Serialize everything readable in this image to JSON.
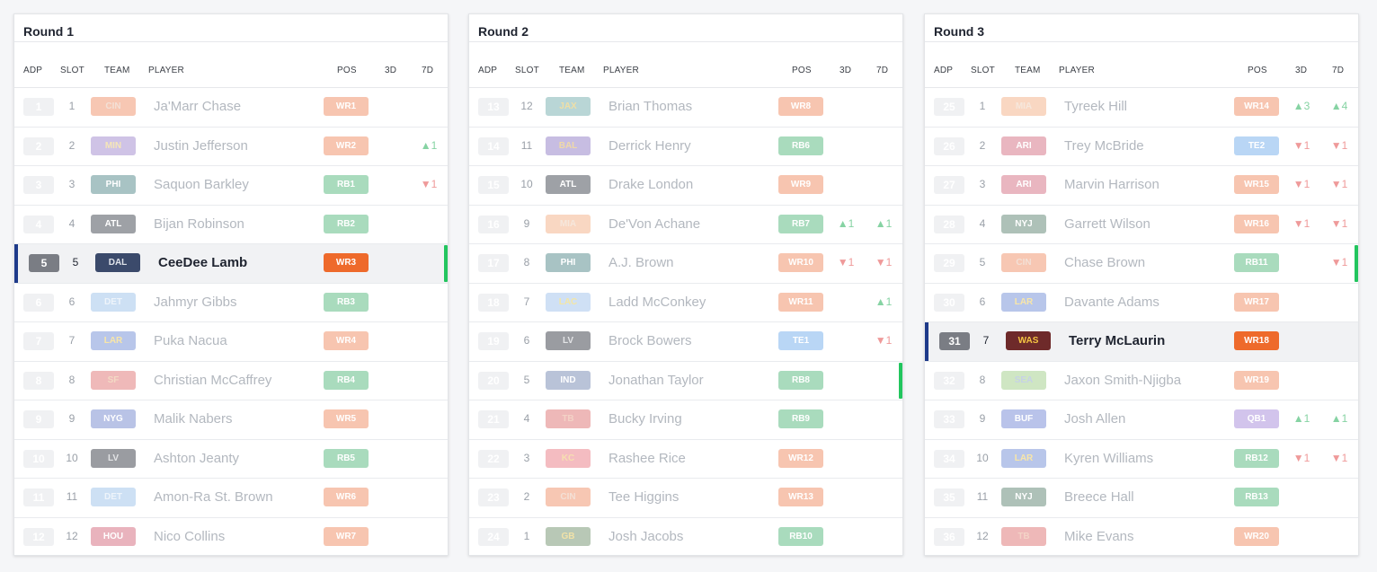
{
  "rounds": [
    {
      "title": "Round 1",
      "headers": {
        "adp": "ADP",
        "slot": "SLOT",
        "team": "TEAM",
        "player": "PLAYER",
        "pos": "POS",
        "d3": "3D",
        "d7": "7D"
      },
      "rows": [
        {
          "adp": "1",
          "slot": "1",
          "team": "CIN",
          "player": "Ja'Marr Chase",
          "pos": "WR1",
          "d3": "",
          "d7": "",
          "team_bg": "#f7c7b3",
          "team_fg": "#f3e0d6",
          "pos_bg": "#f7c5b0"
        },
        {
          "adp": "2",
          "slot": "2",
          "team": "MIN",
          "player": "Justin Jefferson",
          "pos": "WR2",
          "d3": "",
          "d7": "▲1",
          "team_bg": "#cfc3e6",
          "team_fg": "#f5e6b8",
          "pos_bg": "#f7c5b0"
        },
        {
          "adp": "3",
          "slot": "3",
          "team": "PHI",
          "player": "Saquon Barkley",
          "pos": "RB1",
          "d3": "",
          "d7": "▼1",
          "team_bg": "#a8c3c4",
          "team_fg": "#ffffff",
          "pos_bg": "#a9dbbd"
        },
        {
          "adp": "4",
          "slot": "4",
          "team": "ATL",
          "player": "Bijan Robinson",
          "pos": "RB2",
          "d3": "",
          "d7": "",
          "team_bg": "#9ea1a6",
          "team_fg": "#ffffff",
          "pos_bg": "#a9dbbd"
        },
        {
          "adp": "5",
          "slot": "5",
          "team": "DAL",
          "player": "CeeDee Lamb",
          "pos": "WR3",
          "d3": "",
          "d7": "",
          "team_bg": "#3b4a6b",
          "team_fg": "#dfe3ea",
          "pos_bg": "#ee6a2b",
          "mine": true,
          "flag": true
        },
        {
          "adp": "6",
          "slot": "6",
          "team": "DET",
          "player": "Jahmyr Gibbs",
          "pos": "RB3",
          "d3": "",
          "d7": "",
          "team_bg": "#cde0f4",
          "team_fg": "#eef4fb",
          "pos_bg": "#a9dbbd"
        },
        {
          "adp": "7",
          "slot": "7",
          "team": "LAR",
          "player": "Puka Nacua",
          "pos": "WR4",
          "d3": "",
          "d7": "",
          "team_bg": "#b8c6ea",
          "team_fg": "#f8e6a8",
          "pos_bg": "#f7c5b0"
        },
        {
          "adp": "8",
          "slot": "8",
          "team": "SF",
          "player": "Christian McCaffrey",
          "pos": "RB4",
          "d3": "",
          "d7": "",
          "team_bg": "#efb9b9",
          "team_fg": "#f3d9c4",
          "pos_bg": "#a9dbbd"
        },
        {
          "adp": "9",
          "slot": "9",
          "team": "NYG",
          "player": "Malik Nabers",
          "pos": "WR5",
          "d3": "",
          "d7": "",
          "team_bg": "#b9c3e6",
          "team_fg": "#ffffff",
          "pos_bg": "#f7c5b0"
        },
        {
          "adp": "10",
          "slot": "10",
          "team": "LV",
          "player": "Ashton Jeanty",
          "pos": "RB5",
          "d3": "",
          "d7": "",
          "team_bg": "#9a9ca1",
          "team_fg": "#e3e4e6",
          "pos_bg": "#a9dbbd"
        },
        {
          "adp": "11",
          "slot": "11",
          "team": "DET",
          "player": "Amon-Ra St. Brown",
          "pos": "WR6",
          "d3": "",
          "d7": "",
          "team_bg": "#cde0f4",
          "team_fg": "#eef4fb",
          "pos_bg": "#f7c5b0"
        },
        {
          "adp": "12",
          "slot": "12",
          "team": "HOU",
          "player": "Nico Collins",
          "pos": "WR7",
          "d3": "",
          "d7": "",
          "team_bg": "#e9b3bd",
          "team_fg": "#ffffff",
          "pos_bg": "#f7c5b0"
        }
      ]
    },
    {
      "title": "Round 2",
      "headers": {
        "adp": "ADP",
        "slot": "SLOT",
        "team": "TEAM",
        "player": "PLAYER",
        "pos": "POS",
        "d3": "3D",
        "d7": "7D"
      },
      "rows": [
        {
          "adp": "13",
          "slot": "12",
          "team": "JAX",
          "player": "Brian Thomas",
          "pos": "WR8",
          "d3": "",
          "d7": "",
          "team_bg": "#b9d6d6",
          "team_fg": "#efdfa6",
          "pos_bg": "#f7c5b0"
        },
        {
          "adp": "14",
          "slot": "11",
          "team": "BAL",
          "player": "Derrick Henry",
          "pos": "RB6",
          "d3": "",
          "d7": "",
          "team_bg": "#c7bde2",
          "team_fg": "#efd9a8",
          "pos_bg": "#a9dbbd"
        },
        {
          "adp": "15",
          "slot": "10",
          "team": "ATL",
          "player": "Drake London",
          "pos": "WR9",
          "d3": "",
          "d7": "",
          "team_bg": "#9ea1a6",
          "team_fg": "#ffffff",
          "pos_bg": "#f7c5b0"
        },
        {
          "adp": "16",
          "slot": "9",
          "team": "MIA",
          "player": "De'Von Achane",
          "pos": "RB7",
          "d3": "▲1",
          "d7": "▲1",
          "team_bg": "#f9d7c2",
          "team_fg": "#f6e7dc",
          "pos_bg": "#a9dbbd"
        },
        {
          "adp": "17",
          "slot": "8",
          "team": "PHI",
          "player": "A.J. Brown",
          "pos": "WR10",
          "d3": "▼1",
          "d7": "▼1",
          "team_bg": "#a8c3c4",
          "team_fg": "#ffffff",
          "pos_bg": "#f7c5b0"
        },
        {
          "adp": "18",
          "slot": "7",
          "team": "LAC",
          "player": "Ladd McConkey",
          "pos": "WR11",
          "d3": "",
          "d7": "▲1",
          "team_bg": "#cfe0f5",
          "team_fg": "#f3e6a6",
          "pos_bg": "#f7c5b0"
        },
        {
          "adp": "19",
          "slot": "6",
          "team": "LV",
          "player": "Brock Bowers",
          "pos": "TE1",
          "d3": "",
          "d7": "▼1",
          "team_bg": "#9a9ca1",
          "team_fg": "#e3e4e6",
          "pos_bg": "#b9d6f5"
        },
        {
          "adp": "20",
          "slot": "5",
          "team": "IND",
          "player": "Jonathan Taylor",
          "pos": "RB8",
          "d3": "",
          "d7": "",
          "team_bg": "#b9c3d8",
          "team_fg": "#ffffff",
          "pos_bg": "#a9dbbd",
          "flag": true
        },
        {
          "adp": "21",
          "slot": "4",
          "team": "TB",
          "player": "Bucky Irving",
          "pos": "RB9",
          "d3": "",
          "d7": "",
          "team_bg": "#eeb8b8",
          "team_fg": "#f3d2c6",
          "pos_bg": "#a9dbbd"
        },
        {
          "adp": "22",
          "slot": "3",
          "team": "KC",
          "player": "Rashee Rice",
          "pos": "WR12",
          "d3": "",
          "d7": "",
          "team_bg": "#f4bcc1",
          "team_fg": "#f6dfb0",
          "pos_bg": "#f7c5b0"
        },
        {
          "adp": "23",
          "slot": "2",
          "team": "CIN",
          "player": "Tee Higgins",
          "pos": "WR13",
          "d3": "",
          "d7": "",
          "team_bg": "#f7c7b3",
          "team_fg": "#f3e0d6",
          "pos_bg": "#f7c5b0"
        },
        {
          "adp": "24",
          "slot": "1",
          "team": "GB",
          "player": "Josh Jacobs",
          "pos": "RB10",
          "d3": "",
          "d7": "",
          "team_bg": "#b8c8b6",
          "team_fg": "#f1e2a8",
          "pos_bg": "#a9dbbd"
        }
      ]
    },
    {
      "title": "Round 3",
      "headers": {
        "adp": "ADP",
        "slot": "SLOT",
        "team": "TEAM",
        "player": "PLAYER",
        "pos": "POS",
        "d3": "3D",
        "d7": "7D"
      },
      "rows": [
        {
          "adp": "25",
          "slot": "1",
          "team": "MIA",
          "player": "Tyreek Hill",
          "pos": "WR14",
          "d3": "▲3",
          "d7": "▲4",
          "team_bg": "#f9d7c2",
          "team_fg": "#f6e7dc",
          "pos_bg": "#f7c5b0"
        },
        {
          "adp": "26",
          "slot": "2",
          "team": "ARI",
          "player": "Trey McBride",
          "pos": "TE2",
          "d3": "▼1",
          "d7": "▼1",
          "team_bg": "#e9b6c0",
          "team_fg": "#ffffff",
          "pos_bg": "#b9d6f5"
        },
        {
          "adp": "27",
          "slot": "3",
          "team": "ARI",
          "player": "Marvin Harrison",
          "pos": "WR15",
          "d3": "▼1",
          "d7": "▼1",
          "team_bg": "#e9b6c0",
          "team_fg": "#ffffff",
          "pos_bg": "#f7c5b0"
        },
        {
          "adp": "28",
          "slot": "4",
          "team": "NYJ",
          "player": "Garrett Wilson",
          "pos": "WR16",
          "d3": "▼1",
          "d7": "▼1",
          "team_bg": "#aec1b8",
          "team_fg": "#ffffff",
          "pos_bg": "#f7c5b0"
        },
        {
          "adp": "29",
          "slot": "5",
          "team": "CIN",
          "player": "Chase Brown",
          "pos": "RB11",
          "d3": "",
          "d7": "▼1",
          "team_bg": "#f7c7b3",
          "team_fg": "#f3e0d6",
          "pos_bg": "#a9dbbd",
          "flag": true
        },
        {
          "adp": "30",
          "slot": "6",
          "team": "LAR",
          "player": "Davante Adams",
          "pos": "WR17",
          "d3": "",
          "d7": "",
          "team_bg": "#b8c6ea",
          "team_fg": "#f8e6a8",
          "pos_bg": "#f7c5b0"
        },
        {
          "adp": "31",
          "slot": "7",
          "team": "WAS",
          "player": "Terry McLaurin",
          "pos": "WR18",
          "d3": "",
          "d7": "",
          "team_bg": "#6e2a2a",
          "team_fg": "#f5c542",
          "pos_bg": "#ee6a2b",
          "mine": true
        },
        {
          "adp": "32",
          "slot": "8",
          "team": "SEA",
          "player": "Jaxon Smith-Njigba",
          "pos": "WR19",
          "d3": "",
          "d7": "",
          "team_bg": "#cfe6c3",
          "team_fg": "#c6d2e6",
          "pos_bg": "#f7c5b0"
        },
        {
          "adp": "33",
          "slot": "9",
          "team": "BUF",
          "player": "Josh Allen",
          "pos": "QB1",
          "d3": "▲1",
          "d7": "▲1",
          "team_bg": "#b9c3ea",
          "team_fg": "#ffffff",
          "pos_bg": "#d2c4ec"
        },
        {
          "adp": "34",
          "slot": "10",
          "team": "LAR",
          "player": "Kyren Williams",
          "pos": "RB12",
          "d3": "▼1",
          "d7": "▼1",
          "team_bg": "#b8c6ea",
          "team_fg": "#f8e6a8",
          "pos_bg": "#a9dbbd"
        },
        {
          "adp": "35",
          "slot": "11",
          "team": "NYJ",
          "player": "Breece Hall",
          "pos": "RB13",
          "d3": "",
          "d7": "",
          "team_bg": "#aec1b8",
          "team_fg": "#ffffff",
          "pos_bg": "#a9dbbd"
        },
        {
          "adp": "36",
          "slot": "12",
          "team": "TB",
          "player": "Mike Evans",
          "pos": "WR20",
          "d3": "",
          "d7": "",
          "team_bg": "#eeb8b8",
          "team_fg": "#f3d2c6",
          "pos_bg": "#f7c5b0"
        }
      ]
    }
  ]
}
